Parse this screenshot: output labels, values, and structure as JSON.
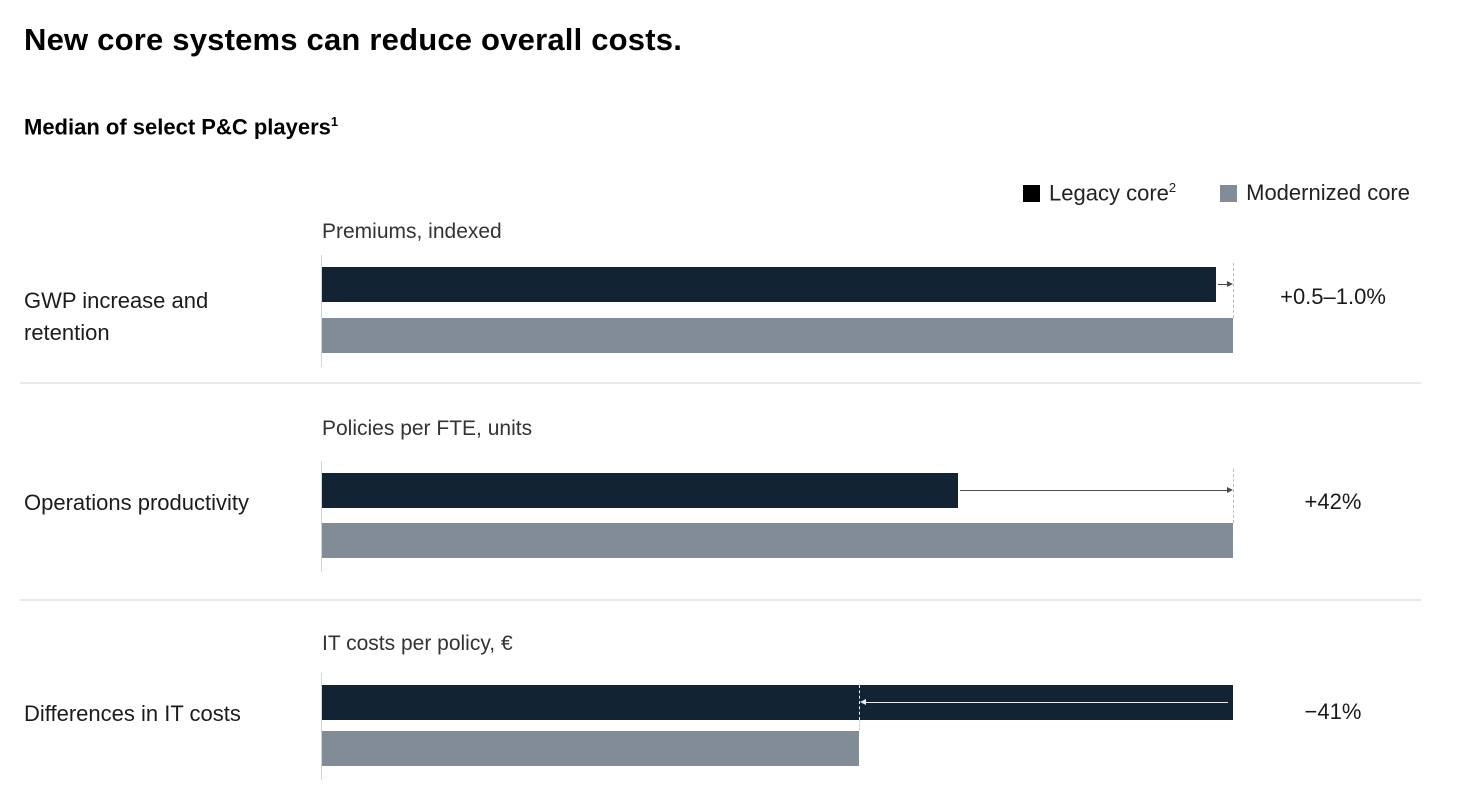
{
  "header": {
    "title": "New core systems can reduce overall costs.",
    "subtitle": "Median of select P&C players",
    "subtitle_superscript": "1"
  },
  "legend": {
    "items": [
      {
        "label": "Legacy core",
        "superscript": "2",
        "color": "#000000"
      },
      {
        "label": "Modernized core",
        "superscript": "",
        "color": "#828C96"
      }
    ]
  },
  "chart_data": {
    "type": "bar",
    "orientation": "horizontal",
    "title": "Median of select P&C players",
    "series_names": [
      "Legacy core",
      "Modernized core"
    ],
    "colors": {
      "legacy_bar": "#122433",
      "modernized_bar": "#828C96",
      "divider": "#e9e9e9"
    },
    "scale_note": "bars scaled per row; longer bar of each pair = 100% of row width",
    "groups": [
      {
        "row_label": "GWP increase and retention",
        "metric_label": "Premiums, indexed",
        "delta_label": "+0.5–1.0%",
        "legacy_pct": 98.1,
        "modernized_pct": 100,
        "indexed_values": {
          "legacy": 100,
          "modernized": "100.5–101.0"
        },
        "arrow": {
          "from_pct": 98.1,
          "to_pct": 100,
          "direction": "right",
          "style": "dark"
        }
      },
      {
        "row_label": "Operations productivity",
        "metric_label": "Policies per FTE, units",
        "delta_label": "+42%",
        "legacy_pct": 69.8,
        "modernized_pct": 100,
        "indexed_values": {
          "legacy": 100,
          "modernized": 142
        },
        "arrow": {
          "from_pct": 69.8,
          "to_pct": 100,
          "direction": "right",
          "style": "dark"
        }
      },
      {
        "row_label": "Differences in IT costs",
        "metric_label": "IT costs per policy, €",
        "delta_label": "−41%",
        "legacy_pct": 100,
        "modernized_pct": 59,
        "indexed_values": {
          "legacy": 100,
          "modernized": 59
        },
        "arrow": {
          "from_pct": 100,
          "to_pct": 59,
          "direction": "left",
          "style": "light"
        }
      }
    ]
  }
}
